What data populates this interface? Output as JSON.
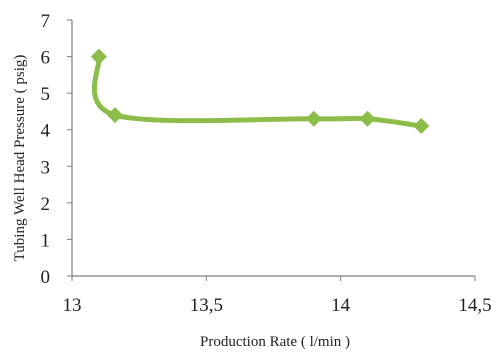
{
  "chart_data": {
    "type": "line",
    "title": "",
    "xlabel": "Production Rate ( l/min )",
    "ylabel": "Tubing Well Head Pressure  ( psig)",
    "xlim": [
      13,
      14.5
    ],
    "ylim": [
      0,
      7
    ],
    "x_ticks": [
      "13",
      "13,5",
      "14",
      "14,5"
    ],
    "y_ticks": [
      "0",
      "1",
      "2",
      "3",
      "4",
      "5",
      "6",
      "7"
    ],
    "grid": false,
    "legend": "none",
    "series": [
      {
        "color": "#8CBD4A",
        "marker": "diamond",
        "smooth": true,
        "points": [
          {
            "x": 13.1,
            "y": 6.0
          },
          {
            "x": 13.16,
            "y": 4.4
          },
          {
            "x": 13.9,
            "y": 4.3
          },
          {
            "x": 14.1,
            "y": 4.3
          },
          {
            "x": 14.3,
            "y": 4.1
          }
        ]
      }
    ]
  }
}
